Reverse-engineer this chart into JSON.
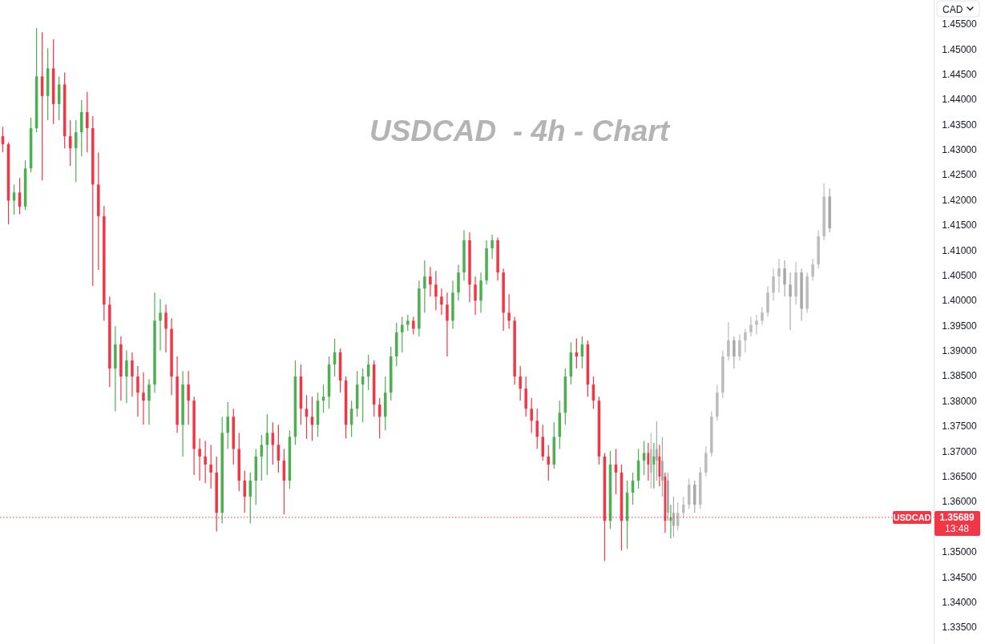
{
  "chart_data": {
    "type": "candlestick",
    "title": "USDCAD  - 4h - Chart",
    "ylabel": "CAD",
    "categories": [
      null,
      null,
      null,
      null,
      null,
      null,
      null,
      null,
      null,
      null,
      null,
      null,
      null,
      null,
      null,
      null,
      null,
      null,
      null,
      null,
      null,
      null,
      null,
      null,
      null,
      null,
      null,
      null,
      null,
      null,
      null,
      null,
      null,
      null,
      null,
      null,
      null,
      null,
      null,
      null,
      null,
      null,
      null,
      null,
      null,
      null,
      null,
      null,
      null,
      null,
      null,
      null,
      null,
      null,
      null,
      null,
      null,
      null,
      null,
      null,
      null,
      null,
      null,
      null,
      null,
      null,
      null,
      null,
      null,
      null,
      null,
      null,
      null,
      null,
      null,
      null,
      null,
      null,
      null,
      null,
      null,
      null,
      null,
      null,
      null,
      null,
      null,
      null,
      null,
      null,
      null,
      null,
      null,
      null,
      null,
      null,
      null,
      null,
      null,
      null,
      null,
      null,
      null,
      null,
      null,
      null,
      null,
      null,
      null,
      null,
      null,
      null,
      null,
      null,
      null,
      null,
      null,
      null,
      null,
      null,
      null,
      null,
      null,
      null,
      null,
      null,
      null,
      null,
      null,
      null,
      null,
      null,
      null,
      null,
      null,
      null,
      null,
      null,
      null,
      null,
      null,
      null,
      null,
      null,
      null,
      null,
      null,
      null,
      null,
      null,
      null,
      null,
      null,
      null,
      null,
      null,
      null,
      null,
      null,
      null,
      null,
      null,
      null,
      null,
      null,
      null
    ],
    "series": [
      {
        "ohlc": [
          [
            1.4327,
            1.4346,
            1.4295,
            1.4311
          ],
          [
            1.4311,
            1.4315,
            1.4152,
            1.4199
          ],
          [
            1.4199,
            1.4231,
            1.4171,
            1.4215
          ],
          [
            1.4215,
            1.4244,
            1.4172,
            1.4187
          ],
          [
            1.4187,
            1.4279,
            1.418,
            1.4263
          ],
          [
            1.4263,
            1.4364,
            1.4255,
            1.4343
          ],
          [
            1.4343,
            1.4542,
            1.4335,
            1.4446
          ],
          [
            1.4446,
            1.4534,
            1.4239,
            1.4407
          ],
          [
            1.4407,
            1.4502,
            1.4359,
            1.4462
          ],
          [
            1.4462,
            1.452,
            1.4351,
            1.4391
          ],
          [
            1.4391,
            1.4446,
            1.4359,
            1.443
          ],
          [
            1.443,
            1.4454,
            1.4303,
            1.4327
          ],
          [
            1.4327,
            1.4359,
            1.4268,
            1.4303
          ],
          [
            1.4303,
            1.4359,
            1.4236,
            1.4335
          ],
          [
            1.4335,
            1.4399,
            1.4287,
            1.4375
          ],
          [
            1.4375,
            1.4415,
            1.4295,
            1.4343
          ],
          [
            1.4343,
            1.4367,
            1.4029,
            1.4231
          ],
          [
            1.4231,
            1.4295,
            1.4061,
            1.4168
          ],
          [
            1.4168,
            1.4188,
            1.396,
            1.3992
          ],
          [
            1.3992,
            1.4008,
            1.3828,
            1.3865
          ],
          [
            1.3865,
            1.3949,
            1.378,
            1.3913
          ],
          [
            1.3913,
            1.3929,
            1.3801,
            1.3849
          ],
          [
            1.3849,
            1.3901,
            1.3796,
            1.3881
          ],
          [
            1.3881,
            1.3897,
            1.3809,
            1.3849
          ],
          [
            1.3849,
            1.387,
            1.3769,
            1.3817
          ],
          [
            1.3817,
            1.3857,
            1.3753,
            1.3801
          ],
          [
            1.3801,
            1.3844,
            1.3753,
            1.3833
          ],
          [
            1.3833,
            1.4016,
            1.3817,
            1.396
          ],
          [
            1.396,
            1.4003,
            1.3901,
            1.3976
          ],
          [
            1.3976,
            1.3992,
            1.3897,
            1.3944
          ],
          [
            1.3944,
            1.3965,
            1.3812,
            1.3849
          ],
          [
            1.3849,
            1.3889,
            1.3737,
            1.3753
          ],
          [
            1.3753,
            1.386,
            1.369,
            1.3833
          ],
          [
            1.3833,
            1.386,
            1.3753,
            1.3801
          ],
          [
            1.3801,
            1.3809,
            1.3653,
            1.3705
          ],
          [
            1.3705,
            1.3726,
            1.3642,
            1.369
          ],
          [
            1.369,
            1.3721,
            1.3637,
            1.3674
          ],
          [
            1.3674,
            1.3713,
            1.3626,
            1.3658
          ],
          [
            1.3658,
            1.369,
            1.3541,
            1.3578
          ],
          [
            1.3578,
            1.3769,
            1.3557,
            1.3737
          ],
          [
            1.3737,
            1.3798,
            1.3705,
            1.3769
          ],
          [
            1.3769,
            1.3785,
            1.3674,
            1.3705
          ],
          [
            1.3705,
            1.3737,
            1.3621,
            1.3642
          ],
          [
            1.3642,
            1.3662,
            1.3578,
            1.361
          ],
          [
            1.361,
            1.3658,
            1.3557,
            1.3642
          ],
          [
            1.3642,
            1.3705,
            1.3594,
            1.369
          ],
          [
            1.369,
            1.3733,
            1.3642,
            1.3713
          ],
          [
            1.3713,
            1.3774,
            1.3653,
            1.3737
          ],
          [
            1.3737,
            1.3758,
            1.3674,
            1.3713
          ],
          [
            1.3713,
            1.3753,
            1.3658,
            1.3682
          ],
          [
            1.3682,
            1.3705,
            1.3575,
            1.3642
          ],
          [
            1.3642,
            1.3742,
            1.3626,
            1.3729
          ],
          [
            1.3729,
            1.3881,
            1.3713,
            1.3849
          ],
          [
            1.3849,
            1.3873,
            1.3753,
            1.3785
          ],
          [
            1.3785,
            1.3812,
            1.3725,
            1.3769
          ],
          [
            1.3769,
            1.3809,
            1.3721,
            1.3753
          ],
          [
            1.3753,
            1.3817,
            1.3729,
            1.3801
          ],
          [
            1.3801,
            1.3833,
            1.3777,
            1.3809
          ],
          [
            1.3809,
            1.3889,
            1.3785,
            1.3873
          ],
          [
            1.3873,
            1.3924,
            1.3849,
            1.3897
          ],
          [
            1.3897,
            1.3905,
            1.3817,
            1.3841
          ],
          [
            1.3841,
            1.3849,
            1.3726,
            1.3753
          ],
          [
            1.3753,
            1.3801,
            1.3729,
            1.3785
          ],
          [
            1.3785,
            1.386,
            1.3769,
            1.3833
          ],
          [
            1.3833,
            1.3865,
            1.3758,
            1.3849
          ],
          [
            1.3849,
            1.3892,
            1.3822,
            1.3873
          ],
          [
            1.3873,
            1.3881,
            1.3769,
            1.3793
          ],
          [
            1.3793,
            1.3806,
            1.3726,
            1.3769
          ],
          [
            1.3769,
            1.3849,
            1.3742,
            1.3817
          ],
          [
            1.3817,
            1.3908,
            1.3801,
            1.3889
          ],
          [
            1.3889,
            1.3956,
            1.387,
            1.3937
          ],
          [
            1.3937,
            1.3968,
            1.3897,
            1.3952
          ],
          [
            1.3952,
            1.3972,
            1.394,
            1.396
          ],
          [
            1.396,
            1.3968,
            1.3933,
            1.3944
          ],
          [
            1.3944,
            1.404,
            1.3929,
            1.4024
          ],
          [
            1.4024,
            1.408,
            1.3976,
            1.4048
          ],
          [
            1.4048,
            1.4067,
            1.4008,
            1.4032
          ],
          [
            1.4032,
            1.4059,
            1.3981,
            1.4008
          ],
          [
            1.4008,
            1.4024,
            1.3972,
            1.3992
          ],
          [
            1.3992,
            1.4016,
            1.3889,
            1.396
          ],
          [
            1.396,
            1.404,
            1.3944,
            1.4016
          ],
          [
            1.4016,
            1.4072,
            1.4,
            1.4056
          ],
          [
            1.4056,
            1.414,
            1.404,
            1.412
          ],
          [
            1.412,
            1.4136,
            1.3997,
            1.4032
          ],
          [
            1.4032,
            1.4048,
            1.3972,
            1.4
          ],
          [
            1.4,
            1.4056,
            1.3976,
            1.404
          ],
          [
            1.404,
            1.412,
            1.4032,
            1.4104
          ],
          [
            1.4104,
            1.4131,
            1.4083,
            1.412
          ],
          [
            1.412,
            1.4125,
            1.404,
            1.4056
          ],
          [
            1.4056,
            1.4064,
            1.394,
            1.3976
          ],
          [
            1.3976,
            1.4013,
            1.3944,
            1.396
          ],
          [
            1.396,
            1.3968,
            1.3833,
            1.3849
          ],
          [
            1.3849,
            1.387,
            1.3801,
            1.3825
          ],
          [
            1.3825,
            1.3849,
            1.3769,
            1.3785
          ],
          [
            1.3785,
            1.3806,
            1.3737,
            1.3761
          ],
          [
            1.3761,
            1.3785,
            1.3705,
            1.3729
          ],
          [
            1.3729,
            1.3753,
            1.3682,
            1.369
          ],
          [
            1.369,
            1.3713,
            1.3642,
            1.3674
          ],
          [
            1.3674,
            1.3758,
            1.3666,
            1.3729
          ],
          [
            1.3729,
            1.3801,
            1.3705,
            1.3777
          ],
          [
            1.3777,
            1.3865,
            1.3753,
            1.3849
          ],
          [
            1.3849,
            1.3917,
            1.3833,
            1.3897
          ],
          [
            1.3897,
            1.3925,
            1.3865,
            1.3889
          ],
          [
            1.3889,
            1.3929,
            1.3865,
            1.3913
          ],
          [
            1.3913,
            1.3921,
            1.3809,
            1.3833
          ],
          [
            1.3833,
            1.3849,
            1.3785,
            1.3801
          ],
          [
            1.3801,
            1.3809,
            1.3674,
            1.369
          ],
          [
            1.369,
            1.3697,
            1.3482,
            1.3562
          ],
          [
            1.3562,
            1.3701,
            1.3546,
            1.3674
          ],
          [
            1.3674,
            1.3705,
            1.3615,
            1.3658
          ],
          [
            1.3658,
            1.3674,
            1.3503,
            1.3562
          ],
          [
            1.3562,
            1.3642,
            1.3506,
            1.3618
          ],
          [
            1.3618,
            1.3658,
            1.3594,
            1.3642
          ],
          [
            1.3642,
            1.3705,
            1.3626,
            1.3682
          ],
          [
            1.3682,
            1.3721,
            1.3653,
            1.3697
          ],
          [
            1.3697,
            1.3717,
            1.3642,
            1.3674
          ],
          [
            1.3674,
            1.3717,
            1.3626,
            1.369
          ],
          [
            1.369,
            1.3713,
            1.3631,
            1.365
          ],
          [
            1.365,
            1.3658,
            1.3538,
            1.3562
          ],
          [
            1.3562,
            1.3594,
            1.3527,
            1.3569
          ],
          null,
          null,
          null,
          null,
          null,
          null,
          null,
          null,
          null,
          null,
          null,
          null,
          null,
          null,
          null,
          null,
          null,
          null,
          null,
          null,
          null,
          null,
          null,
          null,
          null,
          null,
          null,
          null,
          null,
          null,
          null,
          null,
          null,
          null,
          null,
          null,
          null,
          null,
          null,
          null,
          null,
          null,
          null,
          null,
          null,
          null
        ],
        "colors": [
          "#f23645",
          "#f23645",
          "#4caf50",
          "#f23645",
          "#4caf50",
          "#4caf50",
          "#4caf50",
          "#f23645",
          "#4caf50",
          "#f23645",
          "#4caf50",
          "#f23645",
          "#f23645",
          "#4caf50",
          "#4caf50",
          "#f23645",
          "#f23645",
          "#f23645",
          "#f23645",
          "#f23645",
          "#4caf50",
          "#f23645",
          "#4caf50",
          "#f23645",
          "#f23645",
          "#f23645",
          "#4caf50",
          "#4caf50",
          "#4caf50",
          "#f23645",
          "#f23645",
          "#f23645",
          "#4caf50",
          "#f23645",
          "#f23645",
          "#f23645",
          "#f23645",
          "#f23645",
          "#f23645",
          "#4caf50",
          "#4caf50",
          "#f23645",
          "#f23645",
          "#f23645",
          "#4caf50",
          "#4caf50",
          "#4caf50",
          "#4caf50",
          "#f23645",
          "#f23645",
          "#f23645",
          "#4caf50",
          "#4caf50",
          "#f23645",
          "#f23645",
          "#f23645",
          "#4caf50",
          "#4caf50",
          "#4caf50",
          "#4caf50",
          "#f23645",
          "#f23645",
          "#4caf50",
          "#4caf50",
          "#4caf50",
          "#4caf50",
          "#f23645",
          "#f23645",
          "#4caf50",
          "#4caf50",
          "#4caf50",
          "#4caf50",
          "#4caf50",
          "#f23645",
          "#4caf50",
          "#4caf50",
          "#f23645",
          "#f23645",
          "#f23645",
          "#f23645",
          "#4caf50",
          "#4caf50",
          "#4caf50",
          "#f23645",
          "#f23645",
          "#4caf50",
          "#4caf50",
          "#4caf50",
          "#f23645",
          "#f23645",
          "#f23645",
          "#f23645",
          "#f23645",
          "#f23645",
          "#f23645",
          "#f23645",
          "#f23645",
          "#f23645",
          "#4caf50",
          "#4caf50",
          "#4caf50",
          "#4caf50",
          "#f23645",
          "#4caf50",
          "#f23645",
          "#f23645",
          "#f23645",
          "#f23645",
          "#4caf50",
          "#f23645",
          "#f23645",
          "#4caf50",
          "#4caf50",
          "#4caf50",
          "#4caf50",
          "#f23645",
          "#4caf50",
          "#f23645",
          "#f23645",
          "#4caf50",
          null,
          null,
          null,
          null,
          null,
          null,
          null,
          null,
          null,
          null,
          null,
          null,
          null,
          null,
          null,
          null,
          null,
          null,
          null,
          null,
          null,
          null,
          null,
          null,
          null,
          null,
          null,
          null,
          null,
          null,
          null,
          null,
          null,
          null,
          null,
          null,
          null,
          null,
          null,
          null,
          null,
          null,
          null,
          null,
          null,
          null
        ]
      },
      {
        "ohlc": [
          null,
          null,
          null,
          null,
          null,
          null,
          null,
          null,
          null,
          null,
          null,
          null,
          null,
          null,
          null,
          null,
          null,
          null,
          null,
          null,
          null,
          null,
          null,
          null,
          null,
          null,
          null,
          null,
          null,
          null,
          null,
          null,
          null,
          null,
          null,
          null,
          null,
          null,
          null,
          null,
          null,
          null,
          null,
          null,
          null,
          null,
          null,
          null,
          null,
          null,
          null,
          null,
          null,
          null,
          null,
          null,
          null,
          null,
          null,
          null,
          null,
          null,
          null,
          null,
          null,
          null,
          null,
          null,
          null,
          null,
          null,
          null,
          null,
          null,
          null,
          null,
          null,
          null,
          null,
          null,
          null,
          null,
          null,
          null,
          null,
          null,
          null,
          null,
          null,
          null,
          null,
          null,
          null,
          null,
          null,
          null,
          null,
          null,
          null,
          null,
          null,
          null,
          null,
          null,
          null,
          null,
          null,
          null,
          null,
          null,
          null,
          null,
          null,
          null,
          null,
          [
            1.3658,
            1.3737,
            1.3626,
            1.3705
          ],
          [
            1.3705,
            1.376,
            1.3642,
            1.3682
          ],
          [
            1.3682,
            1.3729,
            1.361,
            1.3642
          ],
          [
            1.3642,
            1.3658,
            1.3562,
            1.3578
          ],
          [
            1.3578,
            1.361,
            1.353,
            1.3552
          ],
          [
            1.3552,
            1.3599,
            1.3543,
            1.3578
          ],
          [
            1.3578,
            1.361,
            1.3567,
            1.3594
          ],
          [
            1.3594,
            1.3646,
            1.3586,
            1.3634
          ],
          [
            1.3634,
            1.3642,
            1.3578,
            1.3594
          ],
          [
            1.3594,
            1.3669,
            1.3586,
            1.3658
          ],
          [
            1.3658,
            1.371,
            1.365,
            1.3697
          ],
          [
            1.3697,
            1.378,
            1.369,
            1.3769
          ],
          [
            1.3769,
            1.3833,
            1.3761,
            1.3817
          ],
          [
            1.3817,
            1.3901,
            1.3806,
            1.3889
          ],
          [
            1.3889,
            1.3957,
            1.3881,
            1.3921
          ],
          [
            1.3921,
            1.3929,
            1.3865,
            1.3889
          ],
          [
            1.3889,
            1.3933,
            1.3881,
            1.3921
          ],
          [
            1.3921,
            1.3944,
            1.3897,
            1.3937
          ],
          [
            1.3937,
            1.3968,
            1.3929,
            1.3952
          ],
          [
            1.3952,
            1.3972,
            1.3933,
            1.396
          ],
          [
            1.396,
            1.3987,
            1.3952,
            1.3976
          ],
          [
            1.3976,
            1.4029,
            1.3968,
            1.4016
          ],
          [
            1.4016,
            1.4064,
            1.4,
            1.4048
          ],
          [
            1.4048,
            1.4083,
            1.4016,
            1.4064
          ],
          [
            1.4064,
            1.408,
            1.4008,
            1.4032
          ],
          [
            1.4032,
            1.4056,
            1.3941,
            1.4008
          ],
          [
            1.4008,
            1.4077,
            1.3992,
            1.4056
          ],
          [
            1.4056,
            1.4064,
            1.396,
            1.3984
          ],
          [
            1.3984,
            1.4056,
            1.3976,
            1.4048
          ],
          [
            1.4048,
            1.4083,
            1.404,
            1.4072
          ],
          [
            1.4072,
            1.414,
            1.4064,
            1.4128
          ],
          [
            1.4128,
            1.4233,
            1.412,
            1.4207
          ],
          [
            1.4207,
            1.4223,
            1.4136,
            1.4144
          ],
          null,
          null,
          null,
          null,
          null,
          null,
          null,
          null,
          null,
          null,
          null,
          null,
          null,
          null,
          null,
          null,
          null,
          null
        ],
        "colors": [
          null,
          null,
          null,
          null,
          null,
          null,
          null,
          null,
          null,
          null,
          null,
          null,
          null,
          null,
          null,
          null,
          null,
          null,
          null,
          null,
          null,
          null,
          null,
          null,
          null,
          null,
          null,
          null,
          null,
          null,
          null,
          null,
          null,
          null,
          null,
          null,
          null,
          null,
          null,
          null,
          null,
          null,
          null,
          null,
          null,
          null,
          null,
          null,
          null,
          null,
          null,
          null,
          null,
          null,
          null,
          null,
          null,
          null,
          null,
          null,
          null,
          null,
          null,
          null,
          null,
          null,
          null,
          null,
          null,
          null,
          null,
          null,
          null,
          null,
          null,
          null,
          null,
          null,
          null,
          null,
          null,
          null,
          null,
          null,
          null,
          null,
          null,
          null,
          null,
          null,
          null,
          null,
          null,
          null,
          null,
          null,
          null,
          null,
          null,
          null,
          null,
          null,
          null,
          null,
          null,
          null,
          null,
          null,
          null,
          null,
          null,
          null,
          null,
          null,
          null,
          "#bcbcbc",
          "#a8a8a8",
          "#a8a8a8",
          "#a8a8a8",
          "#a8a8a8",
          "#bcbcbc",
          "#bcbcbc",
          "#bcbcbc",
          "#a8a8a8",
          "#bcbcbc",
          "#bcbcbc",
          "#bcbcbc",
          "#bcbcbc",
          "#bcbcbc",
          "#bcbcbc",
          "#a8a8a8",
          "#bcbcbc",
          "#bcbcbc",
          "#bcbcbc",
          "#bcbcbc",
          "#bcbcbc",
          "#bcbcbc",
          "#bcbcbc",
          "#bcbcbc",
          "#a8a8a8",
          "#a8a8a8",
          "#bcbcbc",
          "#a8a8a8",
          "#bcbcbc",
          "#bcbcbc",
          "#bcbcbc",
          "#bcbcbc",
          "#a8a8a8",
          null,
          null,
          null,
          null,
          null,
          null,
          null,
          null,
          null,
          null,
          null,
          null,
          null,
          null,
          null,
          null,
          null,
          null
        ]
      }
    ],
    "ylim": [
      1.3317,
      1.4598
    ],
    "yticks": [
      {
        "value": 1.335,
        "label": "1.33500"
      },
      {
        "value": 1.34,
        "label": "1.34000"
      },
      {
        "value": 1.345,
        "label": "1.34500"
      },
      {
        "value": 1.35,
        "label": "1.35000"
      },
      {
        "value": 1.36,
        "label": "1.36000"
      },
      {
        "value": 1.365,
        "label": "1.36500"
      },
      {
        "value": 1.37,
        "label": "1.37000"
      },
      {
        "value": 1.375,
        "label": "1.37500"
      },
      {
        "value": 1.38,
        "label": "1.38000"
      },
      {
        "value": 1.385,
        "label": "1.38500"
      },
      {
        "value": 1.39,
        "label": "1.39000"
      },
      {
        "value": 1.395,
        "label": "1.39500"
      },
      {
        "value": 1.4,
        "label": "1.40000"
      },
      {
        "value": 1.405,
        "label": "1.40500"
      },
      {
        "value": 1.41,
        "label": "1.41000"
      },
      {
        "value": 1.415,
        "label": "1.41500"
      },
      {
        "value": 1.42,
        "label": "1.42000"
      },
      {
        "value": 1.425,
        "label": "1.42500"
      },
      {
        "value": 1.43,
        "label": "1.43000"
      },
      {
        "value": 1.435,
        "label": "1.43500"
      },
      {
        "value": 1.44,
        "label": "1.44000"
      },
      {
        "value": 1.445,
        "label": "1.44500"
      },
      {
        "value": 1.45,
        "label": "1.45000"
      },
      {
        "value": 1.455,
        "label": "1.45500"
      }
    ],
    "tick_labels": "y",
    "ref_lines": [
      {
        "axis": "y",
        "value": 1.35689,
        "label": "USDCAD",
        "color": "#f23645",
        "line_style": "dotted"
      }
    ],
    "annotations": [
      "1.35689",
      "13:48"
    ]
  }
}
